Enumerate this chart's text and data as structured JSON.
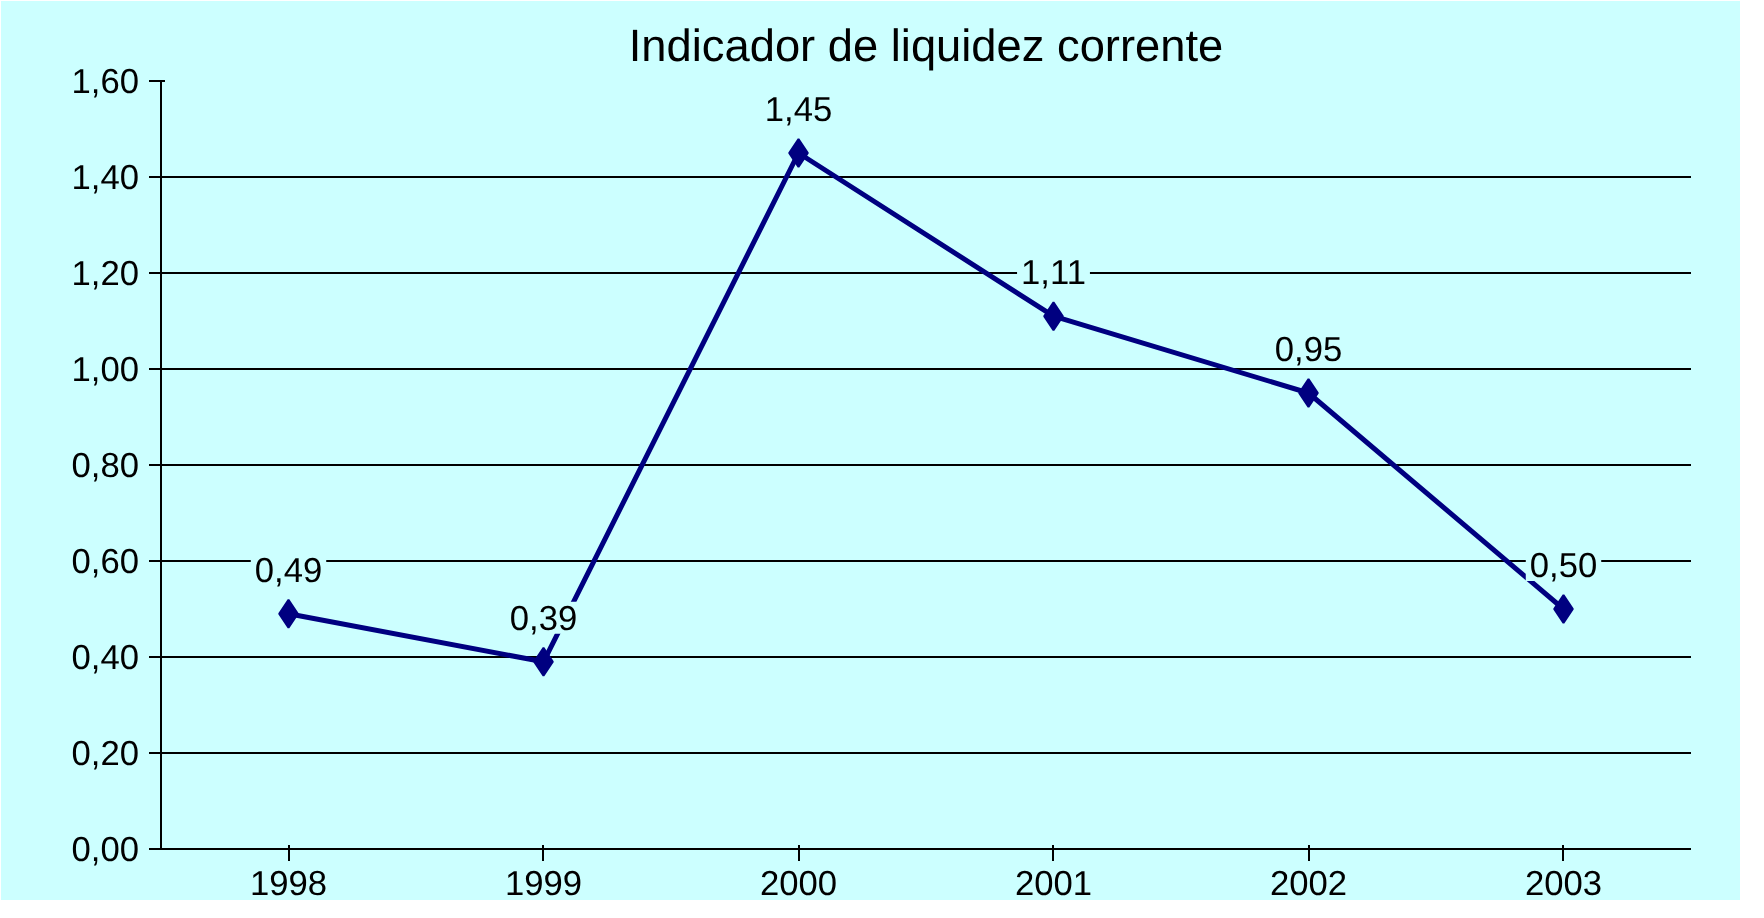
{
  "chart_data": {
    "type": "line",
    "title": "Indicador de liquidez corrente",
    "categories": [
      "1998",
      "1999",
      "2000",
      "2001",
      "2002",
      "2003"
    ],
    "series": [
      {
        "color": "#000080",
        "values": [
          0.49,
          0.39,
          1.45,
          1.11,
          0.95,
          0.5
        ],
        "value_labels": [
          "0,49",
          "0,39",
          "1,45",
          "1,11",
          "0,95",
          "0,50"
        ]
      }
    ],
    "ylim": [
      0,
      1.6
    ],
    "yticks": [
      {
        "value": 0,
        "label": "0,00"
      },
      {
        "value": 0.2,
        "label": "0,20"
      },
      {
        "value": 0.4,
        "label": "0,40"
      },
      {
        "value": 0.6,
        "label": "0,60"
      },
      {
        "value": 0.8,
        "label": "0,80"
      },
      {
        "value": 1.0,
        "label": "1,00"
      },
      {
        "value": 1.2,
        "label": "1,20"
      },
      {
        "value": 1.4,
        "label": "1,40"
      },
      {
        "value": 1.6,
        "label": "1,60"
      }
    ],
    "grid": "y",
    "marker": "diamond"
  }
}
